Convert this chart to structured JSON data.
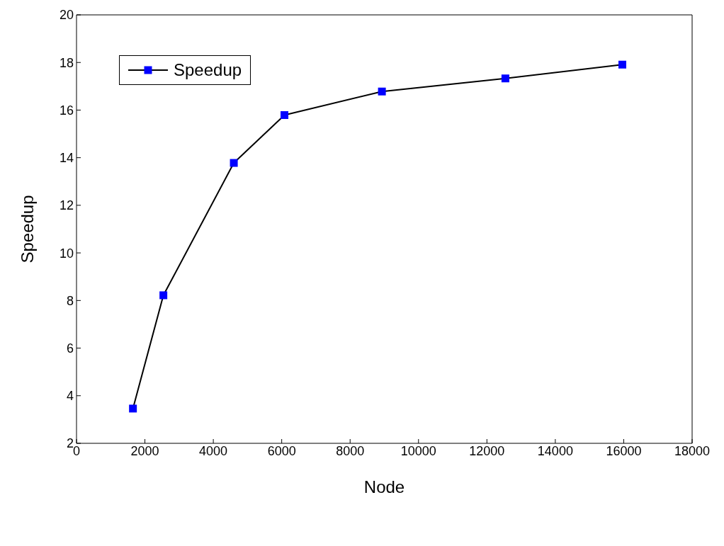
{
  "chart_data": {
    "type": "line",
    "xlabel": "Node",
    "ylabel": "Speedup",
    "x": [
      1650,
      2540,
      4600,
      6080,
      8930,
      12540,
      15960
    ],
    "series": [
      {
        "name": "Speedup",
        "color": "#0000ff",
        "values": [
          3.46,
          8.22,
          13.78,
          15.79,
          16.78,
          17.33,
          17.91
        ]
      }
    ],
    "xlim": [
      0,
      18000
    ],
    "xticks": [
      0,
      2000,
      4000,
      6000,
      8000,
      10000,
      12000,
      14000,
      16000,
      18000
    ],
    "ylim": [
      2,
      20
    ],
    "yticks": [
      2,
      4,
      6,
      8,
      10,
      12,
      14,
      16,
      18,
      20
    ],
    "grid": false,
    "legend": "top left",
    "marker": "square",
    "line_style": "solid"
  }
}
